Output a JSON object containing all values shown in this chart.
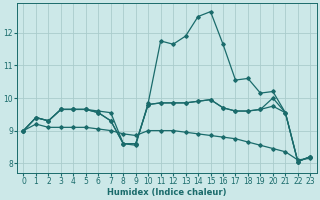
{
  "xlabel": "Humidex (Indice chaleur)",
  "background_color": "#cce8e8",
  "grid_color": "#aacccc",
  "line_color": "#1a6b6b",
  "xlim": [
    -0.5,
    23.5
  ],
  "ylim": [
    7.7,
    12.9
  ],
  "yticks": [
    8,
    9,
    10,
    11,
    12
  ],
  "xticks": [
    0,
    1,
    2,
    3,
    4,
    5,
    6,
    7,
    8,
    9,
    10,
    11,
    12,
    13,
    14,
    15,
    16,
    17,
    18,
    19,
    20,
    21,
    22,
    23
  ],
  "series": [
    {
      "x": [
        0,
        1,
        2,
        3,
        4,
        5,
        6,
        7,
        8,
        9,
        10,
        11,
        12,
        13,
        14,
        15,
        16,
        17,
        18,
        19,
        20,
        21,
        22,
        23
      ],
      "y": [
        9.0,
        9.4,
        9.3,
        9.65,
        9.65,
        9.65,
        9.6,
        9.55,
        8.6,
        8.55,
        9.85,
        11.75,
        11.65,
        11.9,
        12.5,
        12.65,
        11.65,
        10.55,
        10.6,
        10.15,
        10.2,
        9.55,
        8.05,
        8.2
      ]
    },
    {
      "x": [
        0,
        1,
        2,
        3,
        4,
        5,
        6,
        7,
        8,
        9,
        10,
        11,
        12,
        13,
        14,
        15,
        16,
        17,
        18,
        19,
        20,
        21,
        22,
        23
      ],
      "y": [
        9.0,
        9.4,
        9.3,
        9.65,
        9.65,
        9.65,
        9.55,
        9.3,
        8.6,
        8.6,
        9.8,
        9.85,
        9.85,
        9.85,
        9.9,
        9.95,
        9.7,
        9.6,
        9.6,
        9.65,
        10.0,
        9.55,
        8.05,
        8.2
      ]
    },
    {
      "x": [
        0,
        1,
        2,
        3,
        4,
        5,
        6,
        7,
        8,
        9,
        10,
        11,
        12,
        13,
        14,
        15,
        16,
        17,
        18,
        19,
        20,
        21,
        22,
        23
      ],
      "y": [
        9.0,
        9.4,
        9.3,
        9.65,
        9.65,
        9.65,
        9.55,
        9.3,
        8.6,
        8.6,
        9.8,
        9.85,
        9.85,
        9.85,
        9.9,
        9.95,
        9.7,
        9.6,
        9.6,
        9.65,
        9.75,
        9.55,
        8.05,
        8.2
      ]
    },
    {
      "x": [
        0,
        1,
        2,
        3,
        4,
        5,
        6,
        7,
        8,
        9,
        10,
        11,
        12,
        13,
        14,
        15,
        16,
        17,
        18,
        19,
        20,
        21,
        22,
        23
      ],
      "y": [
        9.0,
        9.2,
        9.1,
        9.1,
        9.1,
        9.1,
        9.05,
        9.0,
        8.9,
        8.85,
        9.0,
        9.0,
        9.0,
        8.95,
        8.9,
        8.85,
        8.8,
        8.75,
        8.65,
        8.55,
        8.45,
        8.35,
        8.1,
        8.15
      ]
    }
  ]
}
